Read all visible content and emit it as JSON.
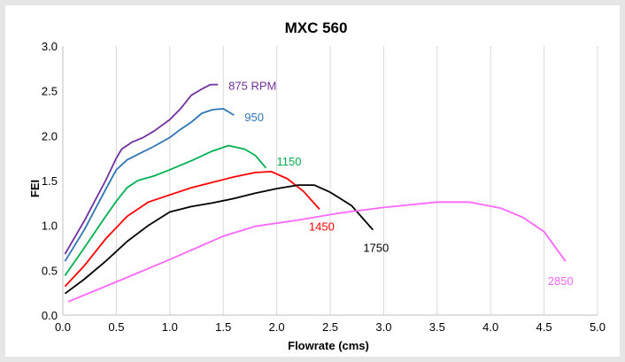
{
  "chart_data": {
    "type": "line",
    "title": "MXC 560",
    "xlabel": "Flowrate (cms)",
    "ylabel": "FEI",
    "xlim": [
      0,
      5
    ],
    "ylim": [
      0,
      3
    ],
    "x_ticks": [
      "0.0",
      "0.5",
      "1.0",
      "1.5",
      "2.0",
      "2.5",
      "3.0",
      "3.5",
      "4.0",
      "4.5",
      "5.0"
    ],
    "y_ticks": [
      "0.0",
      "0.5",
      "1.0",
      "1.5",
      "2.0",
      "2.5",
      "3.0"
    ],
    "grid": {
      "vertical": true,
      "horizontal": false
    },
    "series": [
      {
        "name": "875 RPM",
        "color": "#7030a0",
        "points": [
          [
            0.02,
            0.68
          ],
          [
            0.2,
            1.05
          ],
          [
            0.4,
            1.5
          ],
          [
            0.5,
            1.75
          ],
          [
            0.55,
            1.85
          ],
          [
            0.65,
            1.93
          ],
          [
            0.75,
            1.98
          ],
          [
            0.85,
            2.05
          ],
          [
            1.0,
            2.18
          ],
          [
            1.1,
            2.3
          ],
          [
            1.2,
            2.45
          ],
          [
            1.3,
            2.52
          ],
          [
            1.38,
            2.57
          ],
          [
            1.45,
            2.57
          ]
        ]
      },
      {
        "name": "950",
        "color": "#2e75b6",
        "points": [
          [
            0.02,
            0.6
          ],
          [
            0.2,
            0.95
          ],
          [
            0.4,
            1.4
          ],
          [
            0.5,
            1.62
          ],
          [
            0.6,
            1.73
          ],
          [
            0.7,
            1.79
          ],
          [
            0.85,
            1.88
          ],
          [
            1.0,
            1.98
          ],
          [
            1.1,
            2.07
          ],
          [
            1.2,
            2.15
          ],
          [
            1.3,
            2.25
          ],
          [
            1.4,
            2.29
          ],
          [
            1.5,
            2.3
          ],
          [
            1.6,
            2.23
          ]
        ]
      },
      {
        "name": "1150",
        "color": "#00b050",
        "points": [
          [
            0.02,
            0.44
          ],
          [
            0.2,
            0.75
          ],
          [
            0.4,
            1.1
          ],
          [
            0.5,
            1.27
          ],
          [
            0.6,
            1.42
          ],
          [
            0.7,
            1.5
          ],
          [
            0.85,
            1.55
          ],
          [
            1.0,
            1.62
          ],
          [
            1.2,
            1.72
          ],
          [
            1.4,
            1.83
          ],
          [
            1.55,
            1.89
          ],
          [
            1.7,
            1.85
          ],
          [
            1.8,
            1.78
          ],
          [
            1.9,
            1.64
          ]
        ]
      },
      {
        "name": "1450",
        "color": "#ff0000",
        "points": [
          [
            0.02,
            0.32
          ],
          [
            0.2,
            0.55
          ],
          [
            0.4,
            0.85
          ],
          [
            0.6,
            1.1
          ],
          [
            0.8,
            1.26
          ],
          [
            1.0,
            1.34
          ],
          [
            1.2,
            1.42
          ],
          [
            1.4,
            1.48
          ],
          [
            1.6,
            1.54
          ],
          [
            1.8,
            1.59
          ],
          [
            1.95,
            1.6
          ],
          [
            2.1,
            1.52
          ],
          [
            2.25,
            1.38
          ],
          [
            2.4,
            1.18
          ]
        ]
      },
      {
        "name": "1750",
        "color": "#000000",
        "points": [
          [
            0.02,
            0.24
          ],
          [
            0.2,
            0.4
          ],
          [
            0.4,
            0.6
          ],
          [
            0.6,
            0.82
          ],
          [
            0.8,
            1.0
          ],
          [
            1.0,
            1.15
          ],
          [
            1.2,
            1.21
          ],
          [
            1.4,
            1.25
          ],
          [
            1.6,
            1.3
          ],
          [
            1.8,
            1.36
          ],
          [
            2.0,
            1.41
          ],
          [
            2.2,
            1.45
          ],
          [
            2.35,
            1.45
          ],
          [
            2.5,
            1.37
          ],
          [
            2.7,
            1.22
          ],
          [
            2.9,
            0.95
          ]
        ]
      },
      {
        "name": "2850",
        "color": "#ff66ff",
        "points": [
          [
            0.05,
            0.15
          ],
          [
            0.5,
            0.37
          ],
          [
            1.0,
            0.62
          ],
          [
            1.5,
            0.88
          ],
          [
            1.8,
            0.99
          ],
          [
            2.2,
            1.06
          ],
          [
            2.6,
            1.14
          ],
          [
            3.0,
            1.2
          ],
          [
            3.5,
            1.26
          ],
          [
            3.8,
            1.26
          ],
          [
            4.1,
            1.19
          ],
          [
            4.3,
            1.09
          ],
          [
            4.5,
            0.93
          ],
          [
            4.7,
            0.6
          ]
        ]
      }
    ]
  }
}
